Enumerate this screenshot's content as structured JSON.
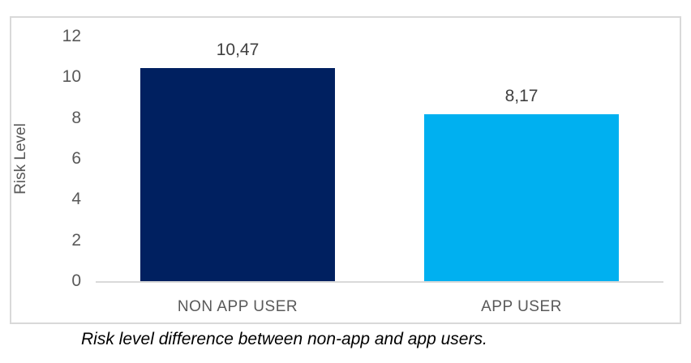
{
  "chart_data": {
    "type": "bar",
    "categories": [
      "NON APP USER",
      "APP USER"
    ],
    "values": [
      10.47,
      8.17
    ],
    "value_labels": [
      "10,47",
      "8,17"
    ],
    "series_name": "Risk Level",
    "title": "",
    "xlabel": "",
    "ylabel": "Risk Level",
    "ylim": [
      0,
      12
    ],
    "yticks": [
      0,
      2,
      4,
      6,
      8,
      10,
      12
    ],
    "grid": false,
    "legend": "none",
    "bar_colors": [
      "#002060",
      "#00B0F0"
    ],
    "frame_color": "#D9D9D9",
    "axis_label_color": "#595959",
    "data_label_color": "#404040",
    "caption": "Risk level difference between non-app and app users."
  }
}
